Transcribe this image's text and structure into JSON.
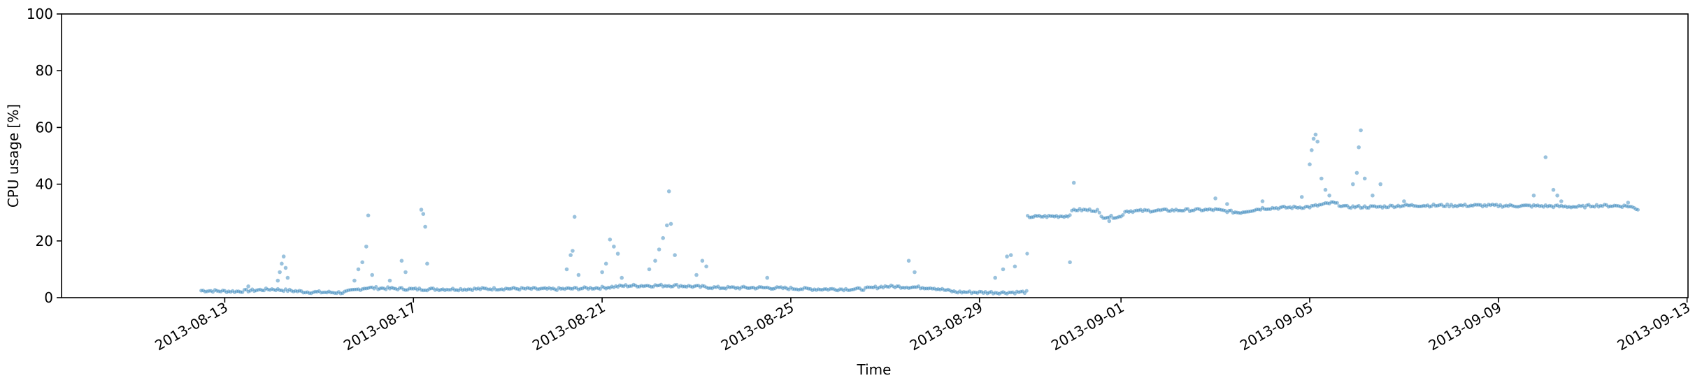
{
  "chart_data": {
    "type": "scatter",
    "title": "",
    "xlabel": "Time",
    "ylabel": "CPU usage [%]",
    "ylim": [
      0,
      100
    ],
    "xlim": [
      "2013-08-09",
      "2013-09-13"
    ],
    "grid": false,
    "marker_color": "#1f77b4",
    "marker_alpha": 0.45,
    "x_ticks": [
      "2013-08-13",
      "2013-08-17",
      "2013-08-21",
      "2013-08-25",
      "2013-08-29",
      "2013-09-01",
      "2013-09-05",
      "2013-09-09",
      "2013-09-13"
    ],
    "y_ticks": [
      0,
      20,
      40,
      60,
      80,
      100
    ],
    "baseline": [
      [
        "2013-08-12 12:00",
        2.5
      ],
      [
        "2013-08-13 06:00",
        2.2
      ],
      [
        "2013-08-14 00:00",
        3.0
      ],
      [
        "2013-08-14 18:00",
        2.0
      ],
      [
        "2013-08-15 12:00",
        1.8
      ],
      [
        "2013-08-16 00:00",
        3.5
      ],
      [
        "2013-08-17 00:00",
        3.0
      ],
      [
        "2013-08-18 00:00",
        3.0
      ],
      [
        "2013-08-19 00:00",
        3.2
      ],
      [
        "2013-08-20 00:00",
        3.0
      ],
      [
        "2013-08-21 00:00",
        3.5
      ],
      [
        "2013-08-21 12:00",
        4.2
      ],
      [
        "2013-08-22 12:00",
        4.3
      ],
      [
        "2013-08-23 12:00",
        3.5
      ],
      [
        "2013-08-24 12:00",
        3.5
      ],
      [
        "2013-08-25 12:00",
        3.0
      ],
      [
        "2013-08-26 12:00",
        3.0
      ],
      [
        "2013-08-27 00:00",
        4.0
      ],
      [
        "2013-08-28 00:00",
        3.5
      ],
      [
        "2013-08-28 12:00",
        2.0
      ],
      [
        "2013-08-29 12:00",
        1.8
      ],
      [
        "2013-08-30 00:00",
        2.0
      ],
      [
        "2013-08-30 00:30",
        28.5
      ],
      [
        "2013-08-30 21:00",
        28.8
      ],
      [
        "2013-08-31 00:00",
        31.0
      ],
      [
        "2013-08-31 12:00",
        30.8
      ],
      [
        "2013-08-31 14:00",
        28.5
      ],
      [
        "2013-09-01 00:00",
        28.5
      ],
      [
        "2013-09-01 02:00",
        30.5
      ],
      [
        "2013-09-02 00:00",
        30.8
      ],
      [
        "2013-09-03 00:00",
        31.0
      ],
      [
        "2013-09-03 12:00",
        30.0
      ],
      [
        "2013-09-04 00:00",
        31.5
      ],
      [
        "2013-09-05 00:00",
        32.0
      ],
      [
        "2013-09-05 12:00",
        33.5
      ],
      [
        "2013-09-05 18:00",
        32.0
      ],
      [
        "2013-09-06 12:00",
        32.0
      ],
      [
        "2013-09-07 00:00",
        32.5
      ],
      [
        "2013-09-08 12:00",
        32.5
      ],
      [
        "2013-09-10 00:00",
        32.3
      ],
      [
        "2013-09-10 18:00",
        32.0
      ],
      [
        "2013-09-11 00:00",
        32.5
      ],
      [
        "2013-09-11 18:00",
        32.3
      ],
      [
        "2013-09-12 00:00",
        31.0
      ]
    ],
    "outliers": [
      [
        "2013-08-13 12:00",
        4.0
      ],
      [
        "2013-08-14 03:00",
        6.0
      ],
      [
        "2013-08-14 04:00",
        9.0
      ],
      [
        "2013-08-14 05:00",
        12.0
      ],
      [
        "2013-08-14 06:00",
        14.5
      ],
      [
        "2013-08-14 07:00",
        10.5
      ],
      [
        "2013-08-14 08:00",
        7.0
      ],
      [
        "2013-08-15 18:00",
        6.0
      ],
      [
        "2013-08-15 20:00",
        10.0
      ],
      [
        "2013-08-15 22:00",
        12.5
      ],
      [
        "2013-08-16 00:00",
        18.0
      ],
      [
        "2013-08-16 01:00",
        29.0
      ],
      [
        "2013-08-16 03:00",
        8.0
      ],
      [
        "2013-08-16 12:00",
        6.0
      ],
      [
        "2013-08-16 18:00",
        13.0
      ],
      [
        "2013-08-16 20:00",
        9.0
      ],
      [
        "2013-08-17 04:00",
        31.0
      ],
      [
        "2013-08-17 05:00",
        29.5
      ],
      [
        "2013-08-17 06:00",
        25.0
      ],
      [
        "2013-08-17 07:00",
        12.0
      ],
      [
        "2013-08-20 06:00",
        10.0
      ],
      [
        "2013-08-20 08:00",
        15.0
      ],
      [
        "2013-08-20 09:00",
        16.5
      ],
      [
        "2013-08-20 10:00",
        28.5
      ],
      [
        "2013-08-20 12:00",
        8.0
      ],
      [
        "2013-08-21 00:00",
        9.0
      ],
      [
        "2013-08-21 02:00",
        12.0
      ],
      [
        "2013-08-21 04:00",
        20.5
      ],
      [
        "2013-08-21 06:00",
        18.0
      ],
      [
        "2013-08-21 08:00",
        15.5
      ],
      [
        "2013-08-21 10:00",
        7.0
      ],
      [
        "2013-08-22 00:00",
        10.0
      ],
      [
        "2013-08-22 03:00",
        13.0
      ],
      [
        "2013-08-22 05:00",
        17.0
      ],
      [
        "2013-08-22 07:00",
        21.0
      ],
      [
        "2013-08-22 09:00",
        25.5
      ],
      [
        "2013-08-22 10:00",
        37.5
      ],
      [
        "2013-08-22 11:00",
        26.0
      ],
      [
        "2013-08-22 13:00",
        15.0
      ],
      [
        "2013-08-23 00:00",
        8.0
      ],
      [
        "2013-08-23 03:00",
        13.0
      ],
      [
        "2013-08-23 05:00",
        11.0
      ],
      [
        "2013-08-24 12:00",
        7.0
      ],
      [
        "2013-08-27 12:00",
        13.0
      ],
      [
        "2013-08-27 15:00",
        9.0
      ],
      [
        "2013-08-29 08:00",
        7.0
      ],
      [
        "2013-08-29 12:00",
        10.0
      ],
      [
        "2013-08-29 14:00",
        14.5
      ],
      [
        "2013-08-29 16:00",
        15.0
      ],
      [
        "2013-08-29 18:00",
        11.0
      ],
      [
        "2013-08-30 22:00",
        12.5
      ],
      [
        "2013-08-31 00:00",
        40.5
      ],
      [
        "2013-08-31 18:00",
        27.0
      ],
      [
        "2013-09-03 00:00",
        35.0
      ],
      [
        "2013-09-03 06:00",
        33.0
      ],
      [
        "2013-09-04 00:00",
        34.0
      ],
      [
        "2013-09-04 20:00",
        35.5
      ],
      [
        "2013-09-05 00:00",
        47.0
      ],
      [
        "2013-09-05 01:00",
        52.0
      ],
      [
        "2013-09-05 02:00",
        56.0
      ],
      [
        "2013-09-05 03:00",
        57.5
      ],
      [
        "2013-09-05 04:00",
        55.0
      ],
      [
        "2013-09-05 06:00",
        42.0
      ],
      [
        "2013-09-05 08:00",
        38.0
      ],
      [
        "2013-09-05 10:00",
        36.0
      ],
      [
        "2013-09-05 22:00",
        40.0
      ],
      [
        "2013-09-06 00:00",
        44.0
      ],
      [
        "2013-09-06 01:00",
        53.0
      ],
      [
        "2013-09-06 02:00",
        59.0
      ],
      [
        "2013-09-06 04:00",
        42.0
      ],
      [
        "2013-09-06 08:00",
        36.0
      ],
      [
        "2013-09-06 12:00",
        40.0
      ],
      [
        "2013-09-07 00:00",
        34.0
      ],
      [
        "2013-09-09 18:00",
        36.0
      ],
      [
        "2013-09-10 00:00",
        49.5
      ],
      [
        "2013-09-10 04:00",
        38.0
      ],
      [
        "2013-09-10 06:00",
        36.0
      ],
      [
        "2013-09-10 08:00",
        34.0
      ],
      [
        "2013-09-11 18:00",
        33.5
      ]
    ]
  }
}
